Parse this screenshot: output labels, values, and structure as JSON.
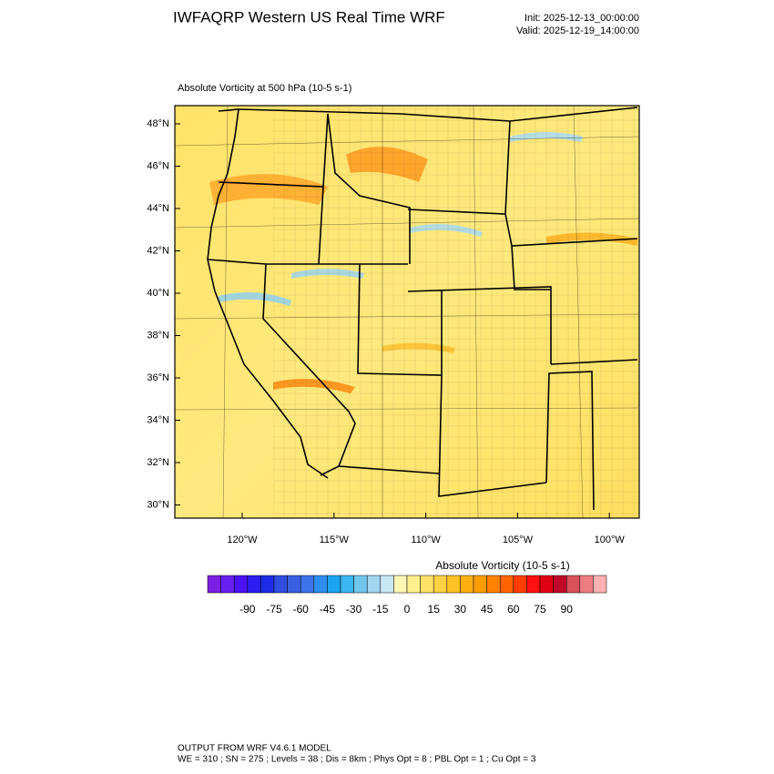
{
  "header": {
    "title": "IWFAQRP Western US Real Time WRF",
    "init": "Init: 2025-12-13_00:00:00",
    "valid": "Valid: 2025-12-19_14:00:00"
  },
  "map": {
    "subtitle": "Absolute Vorticity at 500 hPa   (10-5 s-1)",
    "lat_labels": [
      "48°N",
      "46°N",
      "44°N",
      "42°N",
      "40°N",
      "38°N",
      "36°N",
      "34°N",
      "32°N",
      "30°N"
    ],
    "lon_labels": [
      "120°W",
      "115°W",
      "110°W",
      "105°W",
      "100°W"
    ]
  },
  "colorbar": {
    "title": "Absolute Vorticity  (10-5 s-1)",
    "ticks": [
      -90,
      -75,
      -60,
      -45,
      -30,
      -15,
      0,
      15,
      30,
      45,
      60,
      75,
      90
    ],
    "colors": [
      "#7b1fe0",
      "#6620f0",
      "#4a12f5",
      "#2c1df2",
      "#1c2ce6",
      "#2f4ee0",
      "#3a60e2",
      "#3e74ea",
      "#2e8ef0",
      "#1ba4f0",
      "#3bb6f0",
      "#72c6ee",
      "#a0d6f0",
      "#c8e6f4",
      "#fff5b4",
      "#fff08c",
      "#ffe168",
      "#ffd244",
      "#ffc224",
      "#ffb010",
      "#ff9c00",
      "#ff8200",
      "#ff6400",
      "#ff3e00",
      "#ff1010",
      "#e00014",
      "#c00828",
      "#d8505a",
      "#ee7c80",
      "#ffb0b0"
    ]
  },
  "footer": {
    "line1": "OUTPUT FROM WRF V4.6.1 MODEL",
    "line2": "WE = 310 ; SN = 275 ; Levels = 38 ; Dis = 8km ; Phys Opt = 8 ; PBL Opt = 1 ; Cu Opt = 3"
  }
}
